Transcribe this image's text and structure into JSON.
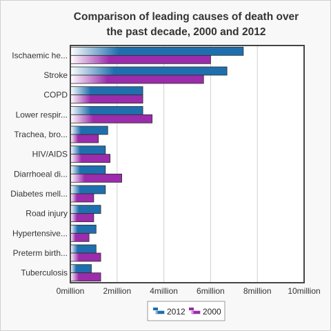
{
  "chart_data": {
    "type": "bar",
    "orientation": "horizontal",
    "title_lines": [
      "Comparison of leading causes of death over",
      "the past decade, 2000 and 2012"
    ],
    "categories": [
      "Ischaemic he...",
      "Stroke",
      "COPD",
      "Lower respir...",
      "Trachea, bro...",
      "HIV/AIDS",
      "Diarrhoeal di...",
      "Diabetes mell...",
      "Road injury",
      "Hypertensive...",
      "Preterm birth...",
      "Tuberculosis"
    ],
    "series": [
      {
        "name": "2012",
        "color": "#1f6fae",
        "values": [
          7400000,
          6700000,
          3100000,
          3100000,
          1600000,
          1500000,
          1500000,
          1500000,
          1300000,
          1100000,
          1100000,
          900000
        ]
      },
      {
        "name": "2000",
        "color": "#9b2cab",
        "values": [
          6000000,
          5700000,
          3100000,
          3500000,
          1200000,
          1700000,
          2200000,
          1000000,
          1000000,
          800000,
          1300000,
          1300000
        ]
      }
    ],
    "xlim": [
      0,
      10000000
    ],
    "ticks": [
      {
        "value": 0,
        "label": "0million"
      },
      {
        "value": 2000000,
        "label": "2million"
      },
      {
        "value": 4000000,
        "label": "4million"
      },
      {
        "value": 6000000,
        "label": "6million"
      },
      {
        "value": 8000000,
        "label": "8million"
      },
      {
        "value": 10000000,
        "label": "10million"
      }
    ],
    "grid": true,
    "legend_position": "bottom-center"
  }
}
